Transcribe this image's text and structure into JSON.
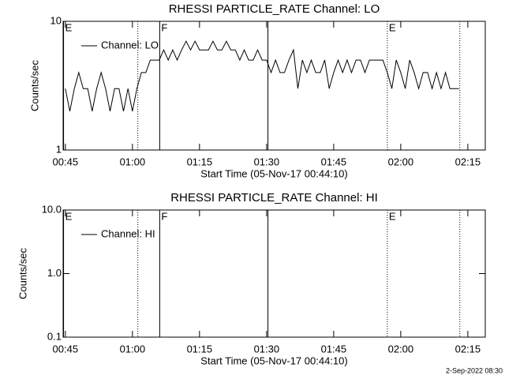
{
  "chart_data": [
    {
      "type": "line",
      "title": "RHESSI PARTICLE_RATE Channel: LO",
      "xlabel": "Start Time (05-Nov-17 00:44:10)",
      "ylabel": "Counts/sec",
      "log_y": true,
      "ylim": [
        1,
        10
      ],
      "yticks": [
        1,
        10
      ],
      "xlim": [
        44.5,
        138.9
      ],
      "xticks": [
        {
          "value": 45,
          "label": "00:45"
        },
        {
          "value": 60,
          "label": "01:00"
        },
        {
          "value": 75,
          "label": "01:15"
        },
        {
          "value": 90,
          "label": "01:30"
        },
        {
          "value": 105,
          "label": "01:45"
        },
        {
          "value": 120,
          "label": "02:00"
        },
        {
          "value": 135,
          "label": "02:15"
        }
      ],
      "legend": "upper left",
      "vlines": [
        {
          "x": 44.6,
          "label": "E",
          "style": "solid"
        },
        {
          "x": 61.2,
          "style": "dotted"
        },
        {
          "x": 66.1,
          "label": "F",
          "style": "solid"
        },
        {
          "x": 90.3,
          "style": "solid"
        },
        {
          "x": 117,
          "label": "E",
          "style": "dotted"
        },
        {
          "x": 133.2,
          "style": "dotted"
        }
      ],
      "series": [
        {
          "name": "Channel: LO",
          "color": "#000000",
          "x": [
            45,
            46,
            47,
            48,
            49,
            50,
            51,
            52,
            53,
            54,
            55,
            56,
            57,
            58,
            59,
            60,
            61,
            62,
            63,
            64,
            65,
            66,
            67,
            68,
            69,
            70,
            71,
            72,
            73,
            74,
            75,
            76,
            77,
            78,
            79,
            80,
            81,
            82,
            83,
            84,
            85,
            86,
            87,
            88,
            89,
            90,
            91,
            92,
            93,
            94,
            95,
            96,
            97,
            98,
            99,
            100,
            101,
            102,
            103,
            104,
            105,
            106,
            107,
            108,
            109,
            110,
            111,
            112,
            113,
            114,
            115,
            116,
            117,
            118,
            119,
            120,
            121,
            122,
            123,
            124,
            125,
            126,
            127,
            128,
            129,
            130,
            131,
            132,
            133
          ],
          "values": [
            3,
            2,
            3,
            4,
            3,
            3,
            2,
            3,
            4,
            3,
            2,
            3,
            3,
            2,
            3,
            2,
            3,
            4,
            4,
            5,
            5,
            5,
            6,
            5,
            6,
            5,
            6,
            7,
            6,
            7,
            6,
            6,
            6,
            7,
            6,
            6,
            7,
            6,
            6,
            5,
            6,
            5,
            5,
            6,
            5,
            5,
            4,
            5,
            4,
            4,
            5,
            6,
            3,
            5,
            4,
            5,
            4,
            4,
            5,
            3,
            4,
            5,
            4,
            5,
            4,
            5,
            5,
            4,
            5,
            5,
            5,
            5,
            4,
            3,
            5,
            4,
            3,
            5,
            4,
            3,
            4,
            4,
            3,
            4,
            3,
            4,
            3,
            3,
            3
          ]
        }
      ]
    },
    {
      "type": "line",
      "title": "RHESSI PARTICLE_RATE Channel: HI",
      "xlabel": "Start Time (05-Nov-17 00:44:10)",
      "ylabel": "Counts/sec",
      "log_y": true,
      "ylim": [
        0.1,
        10
      ],
      "yticks": [
        0.1,
        {
          "value": 1,
          "label": "1.0"
        },
        {
          "value": 10,
          "label": "10.0"
        }
      ],
      "xlim": [
        44.5,
        138.9
      ],
      "xticks": [
        {
          "value": 45,
          "label": "00:45"
        },
        {
          "value": 60,
          "label": "01:00"
        },
        {
          "value": 75,
          "label": "01:15"
        },
        {
          "value": 90,
          "label": "01:30"
        },
        {
          "value": 105,
          "label": "01:45"
        },
        {
          "value": 120,
          "label": "02:00"
        },
        {
          "value": 135,
          "label": "02:15"
        }
      ],
      "legend": "upper left",
      "vlines": [
        {
          "x": 44.6,
          "label": "E",
          "style": "solid"
        },
        {
          "x": 61.2,
          "style": "dotted"
        },
        {
          "x": 66.1,
          "label": "F",
          "style": "solid"
        },
        {
          "x": 90.3,
          "style": "solid"
        },
        {
          "x": 117,
          "label": "E",
          "style": "dotted"
        },
        {
          "x": 133.2,
          "style": "dotted"
        }
      ],
      "series": [
        {
          "name": "Channel: HI",
          "color": "#000000",
          "x": [],
          "values": []
        }
      ]
    }
  ],
  "footer": "2-Sep-2022 08:30"
}
